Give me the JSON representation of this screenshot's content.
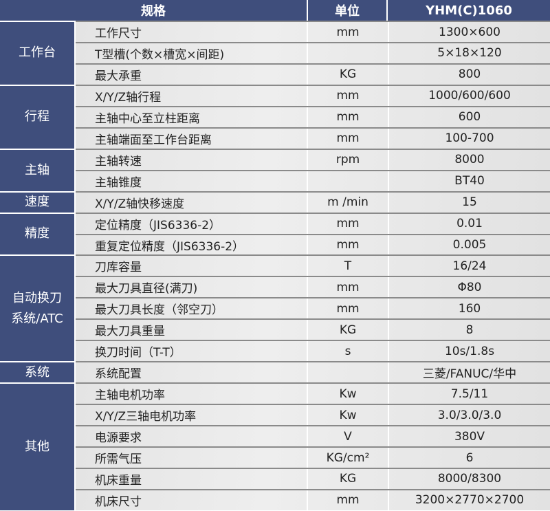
{
  "header": {
    "spec": "规格",
    "unit": "单位",
    "model": "YHM(C)1060"
  },
  "groups": [
    {
      "name": "工作台",
      "rows": [
        [
          "工作尺寸",
          "mm",
          "1300×600"
        ],
        [
          "T型槽(个数×槽宽×间距)",
          "",
          "5×18×120"
        ],
        [
          "最大承重",
          "KG",
          "800"
        ]
      ]
    },
    {
      "name": "行程",
      "rows": [
        [
          "X/Y/Z轴行程",
          "mm",
          "1000/600/600"
        ],
        [
          "主轴中心至立柱距离",
          "mm",
          "600"
        ],
        [
          "主轴端面至工作台距离",
          "mm",
          "100-700"
        ]
      ]
    },
    {
      "name": "主轴",
      "rows": [
        [
          "主轴转速",
          "rpm",
          "8000"
        ],
        [
          "主轴锥度",
          "",
          "BT40"
        ]
      ]
    },
    {
      "name": "速度",
      "rows": [
        [
          "X/Y/Z轴快移速度",
          "m /min",
          "15"
        ]
      ]
    },
    {
      "name": "精度",
      "rows": [
        [
          "定位精度（JIS6336-2）",
          "mm",
          "0.01"
        ],
        [
          "重复定位精度（JIS6336-2）",
          "mm",
          "0.005"
        ]
      ]
    },
    {
      "name": "自动换刀\n系统/ATC",
      "rows": [
        [
          "刀库容量",
          "T",
          "16/24"
        ],
        [
          "最大刀具直径(满刀)",
          "mm",
          "Φ80"
        ],
        [
          "最大刀具长度（邻空刀）",
          "mm",
          "160"
        ],
        [
          "最大刀具重量",
          "KG",
          "8"
        ],
        [
          "换刀时间（T-T）",
          "s",
          "10s/1.8s"
        ]
      ]
    },
    {
      "name": "系统",
      "rows": [
        [
          "系统配置",
          "",
          "三菱/FANUC/华中"
        ]
      ]
    },
    {
      "name": "其他",
      "rows": [
        [
          "主轴电机功率",
          "Kw",
          "7.5/11"
        ],
        [
          "X/Y/Z三轴电机功率",
          "Kw",
          "3.0/3.0/3.0"
        ],
        [
          "电源要求",
          "V",
          "380V"
        ],
        [
          "所需气压",
          "KG/cm²",
          "6"
        ],
        [
          "机床重量",
          "KG",
          "8000/8300"
        ],
        [
          "机床尺寸",
          "mm",
          "3200×2770×2700"
        ]
      ]
    }
  ]
}
